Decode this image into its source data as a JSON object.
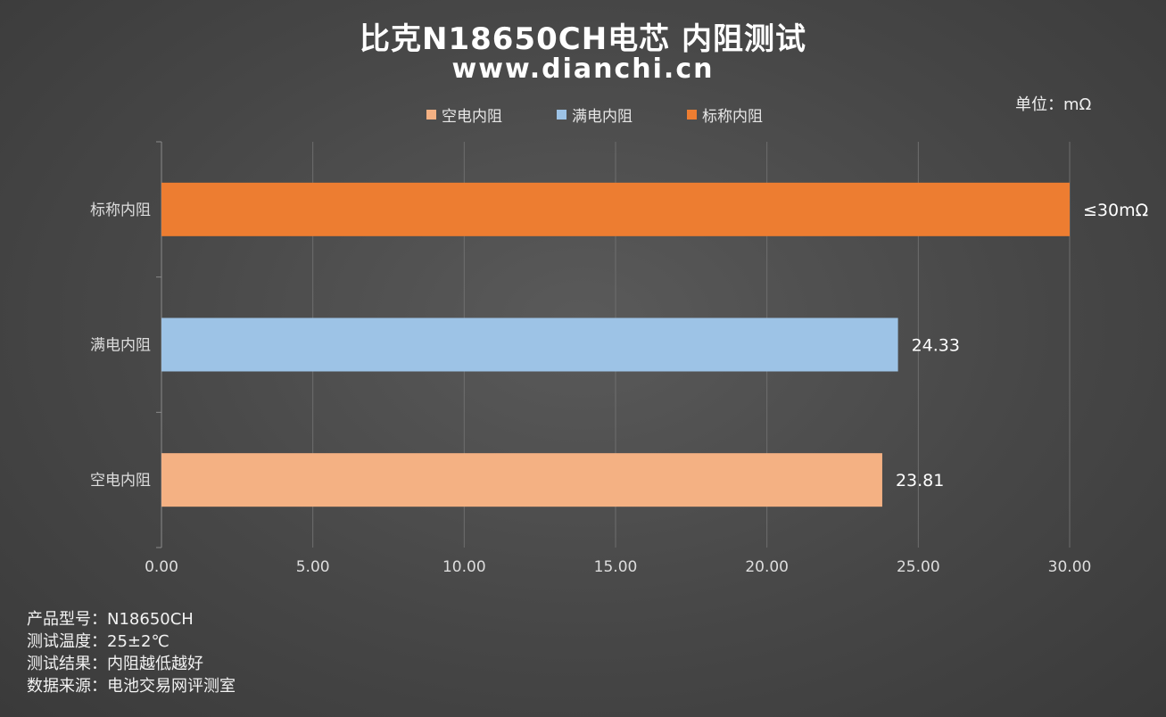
{
  "title": "比克N18650CH电芯 内阻测试",
  "subtitle": "www.dianchi.cn",
  "unit_label": "单位：mΩ",
  "notes": [
    "产品型号：N18650CH",
    "测试温度：25±2℃",
    "测试结果：内阻越低越好",
    "数据来源：电池交易网评测室"
  ],
  "colors": {
    "empty": "#F4B183",
    "full": "#9DC3E6",
    "nominal": "#ED7D31",
    "grid": "#6e6e6e",
    "axis": "#8a8a8a",
    "tick_text": "#dddddd"
  },
  "chart_data": {
    "type": "bar",
    "orientation": "horizontal",
    "categories": [
      "标称内阻",
      "满电内阻",
      "空电内阻"
    ],
    "values": [
      30,
      24.33,
      23.81
    ],
    "data_labels": [
      "≤30mΩ",
      "24.33",
      "23.81"
    ],
    "series_colors": [
      "#ED7D31",
      "#9DC3E6",
      "#F4B183"
    ],
    "legend": [
      "空电内阻",
      "满电内阻",
      "标称内阻"
    ],
    "legend_colors": [
      "#F4B183",
      "#9DC3E6",
      "#ED7D31"
    ],
    "legend_position": "top",
    "x_ticks": [
      "0.00",
      "5.00",
      "10.00",
      "15.00",
      "20.00",
      "25.00",
      "30.00"
    ],
    "xlim": [
      0,
      30
    ],
    "grid": true
  }
}
